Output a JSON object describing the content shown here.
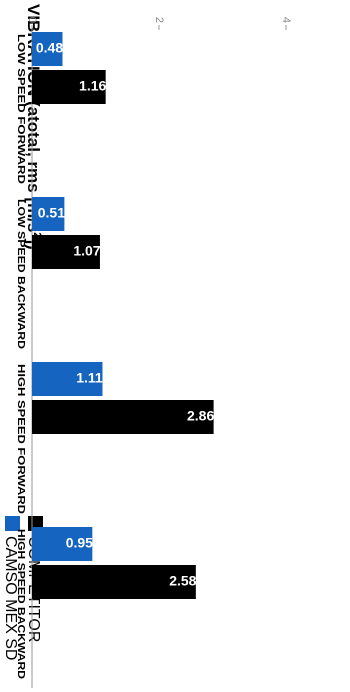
{
  "chart_data": {
    "type": "bar",
    "title": "VIBRATION (atotal, rms [m/s²])",
    "title_main": "VIBRATION (atotal, rms [m/s",
    "title_sup": "2",
    "title_end": "])",
    "categories": [
      "LOW SPEED FORWARD",
      "LOW SPEED BACKWARD",
      "HIGH SPEED FORWARD",
      "HIGH SPEED BACKWARD"
    ],
    "series": [
      {
        "name": "CAMSO MEX SD",
        "color": "#1565c0",
        "values": [
          0.48,
          0.51,
          1.11,
          0.95
        ]
      },
      {
        "name": "COMPETITOR",
        "color": "#000000",
        "values": [
          1.16,
          1.07,
          2.86,
          2.58
        ]
      }
    ],
    "ylim": [
      0,
      4
    ],
    "yticks": [
      0,
      2,
      4
    ],
    "grid": false,
    "legend_position": "top-right",
    "xlabel": "",
    "ylabel": ""
  }
}
